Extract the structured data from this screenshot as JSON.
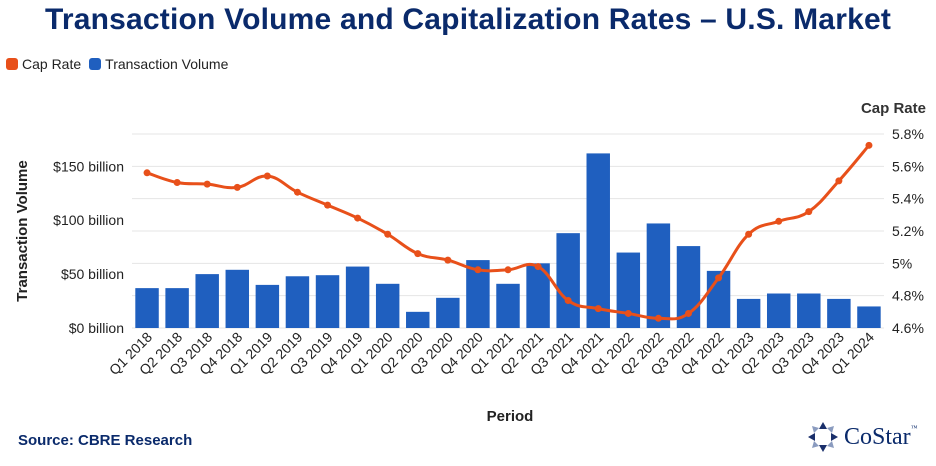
{
  "title": "Transaction Volume and Capitalization Rates – U.S. Market",
  "legend": {
    "items": [
      {
        "label": "Cap Rate",
        "color": "#e8501a"
      },
      {
        "label": "Transaction Volume",
        "color": "#1f5fbf"
      }
    ]
  },
  "source": "Source: CBRE Research",
  "logo": {
    "text": "CoStar",
    "tm": "™"
  },
  "chart_data": {
    "type": "bar",
    "title": "Transaction Volume and Capitalization Rates – U.S. Market",
    "xlabel": "Period",
    "ylabel": "Transaction Volume",
    "y2label": "Cap Rate",
    "categories": [
      "Q1 2018",
      "Q2 2018",
      "Q3 2018",
      "Q4 2018",
      "Q1 2019",
      "Q2 2019",
      "Q3 2019",
      "Q4 2019",
      "Q1 2020",
      "Q2 2020",
      "Q3 2020",
      "Q4 2020",
      "Q1 2021",
      "Q2 2021",
      "Q3 2021",
      "Q4 2021",
      "Q1 2022",
      "Q2 2022",
      "Q3 2022",
      "Q4 2022",
      "Q1 2023",
      "Q2 2023",
      "Q3 2023",
      "Q4 2023",
      "Q1 2024"
    ],
    "series": [
      {
        "name": "Transaction Volume",
        "type": "bar",
        "axis": "left",
        "color": "#1f5fbf",
        "values": [
          37,
          37,
          50,
          54,
          40,
          48,
          49,
          57,
          41,
          15,
          28,
          63,
          41,
          60,
          88,
          162,
          70,
          97,
          76,
          53,
          27,
          32,
          32,
          27,
          20
        ]
      },
      {
        "name": "Cap Rate",
        "type": "line",
        "axis": "right",
        "color": "#e8501a",
        "values": [
          5.56,
          5.5,
          5.49,
          5.47,
          5.54,
          5.44,
          5.36,
          5.28,
          5.18,
          5.06,
          5.02,
          4.96,
          4.96,
          4.98,
          4.77,
          4.72,
          4.69,
          4.66,
          4.69,
          4.91,
          5.18,
          5.26,
          5.32,
          5.51,
          5.73
        ]
      }
    ],
    "ylim": [
      0,
      180
    ],
    "yticks": [
      0,
      50,
      100,
      150
    ],
    "ytick_labels": [
      "$0 billion",
      "$50 billion",
      "$100 billion",
      "$150 billion"
    ],
    "y2lim": [
      4.6,
      5.8
    ],
    "y2ticks": [
      4.6,
      4.8,
      5.0,
      5.2,
      5.4,
      5.6,
      5.8
    ],
    "y2tick_labels": [
      "4.6%",
      "4.8%",
      "5%",
      "5.2%",
      "5.4%",
      "5.6%",
      "5.8%"
    ],
    "grid": true
  }
}
